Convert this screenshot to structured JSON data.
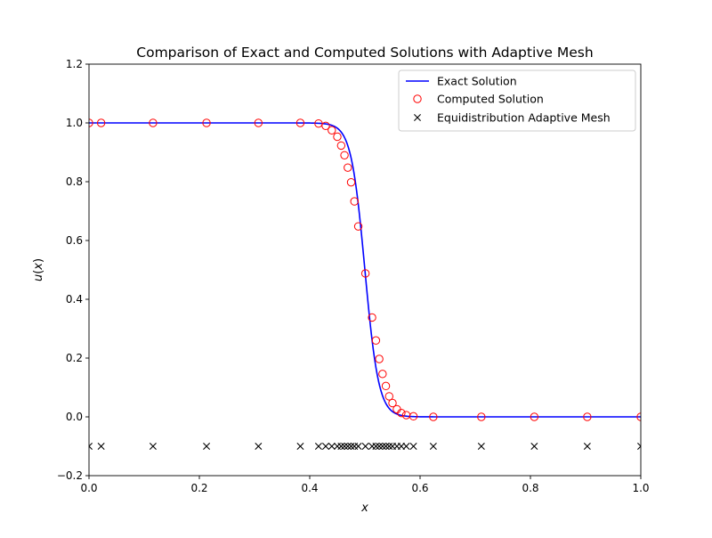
{
  "chart_data": {
    "type": "line",
    "title": "Comparison of Exact and Computed Solutions with Adaptive Mesh",
    "xlabel": "x",
    "ylabel_parts": [
      "u",
      "(",
      "x",
      ")"
    ],
    "xlim": [
      0.0,
      1.0
    ],
    "ylim": [
      -0.2,
      1.2
    ],
    "xticks": [
      0.0,
      0.2,
      0.4,
      0.6,
      0.8,
      1.0
    ],
    "xtick_labels": [
      "0.0",
      "0.2",
      "0.4",
      "0.6",
      "0.8",
      "1.0"
    ],
    "yticks": [
      -0.2,
      0.0,
      0.2,
      0.4,
      0.6,
      0.8,
      1.0,
      1.2
    ],
    "ytick_labels": [
      "−0.2",
      "0.0",
      "0.2",
      "0.4",
      "0.6",
      "0.8",
      "1.0",
      "1.2"
    ],
    "grid": false,
    "legend_position": "top-right",
    "series": [
      {
        "name": "Exact Solution",
        "kind": "line",
        "color": "#0000ff",
        "function": "0.5*(1 - tanh((x - 0.5)/0.025))"
      },
      {
        "name": "Computed Solution",
        "kind": "scatter",
        "marker": "circle-open",
        "color": "#ff0000",
        "x": [
          0.0,
          0.022,
          0.116,
          0.213,
          0.307,
          0.383,
          0.416,
          0.429,
          0.44,
          0.45,
          0.457,
          0.463,
          0.469,
          0.475,
          0.481,
          0.488,
          0.501,
          0.513,
          0.52,
          0.526,
          0.532,
          0.538,
          0.544,
          0.55,
          0.558,
          0.566,
          0.575,
          0.588,
          0.624,
          0.711,
          0.807,
          0.903,
          1.0
        ],
        "y": [
          1.0,
          1.0,
          1.0,
          1.0,
          1.0,
          1.0,
          0.998,
          0.99,
          0.975,
          0.953,
          0.923,
          0.89,
          0.848,
          0.798,
          0.733,
          0.648,
          0.488,
          0.338,
          0.26,
          0.197,
          0.146,
          0.105,
          0.07,
          0.047,
          0.026,
          0.013,
          0.006,
          0.002,
          0.0,
          0.0,
          0.0,
          0.0,
          0.0
        ]
      },
      {
        "name": "Equidistribution Adaptive Mesh",
        "kind": "scatter",
        "marker": "x",
        "color": "#000000",
        "y_value": -0.1,
        "x": [
          0.0,
          0.022,
          0.116,
          0.213,
          0.307,
          0.383,
          0.416,
          0.429,
          0.44,
          0.45,
          0.457,
          0.463,
          0.469,
          0.475,
          0.481,
          0.488,
          0.501,
          0.513,
          0.52,
          0.526,
          0.532,
          0.538,
          0.544,
          0.55,
          0.558,
          0.566,
          0.575,
          0.588,
          0.624,
          0.711,
          0.807,
          0.903,
          1.0
        ]
      }
    ]
  }
}
